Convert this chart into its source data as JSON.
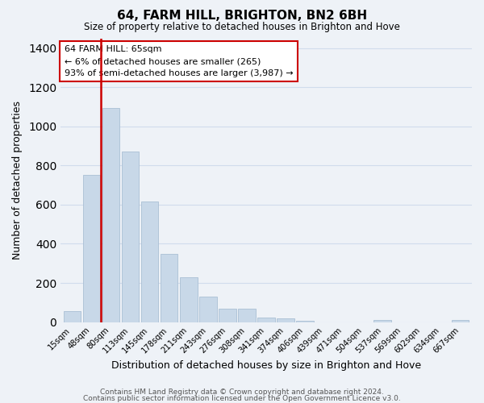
{
  "title": "64, FARM HILL, BRIGHTON, BN2 6BH",
  "subtitle": "Size of property relative to detached houses in Brighton and Hove",
  "xlabel": "Distribution of detached houses by size in Brighton and Hove",
  "ylabel": "Number of detached properties",
  "bar_labels": [
    "15sqm",
    "48sqm",
    "80sqm",
    "113sqm",
    "145sqm",
    "178sqm",
    "211sqm",
    "243sqm",
    "276sqm",
    "308sqm",
    "341sqm",
    "374sqm",
    "406sqm",
    "439sqm",
    "471sqm",
    "504sqm",
    "537sqm",
    "569sqm",
    "602sqm",
    "634sqm",
    "667sqm"
  ],
  "bar_values": [
    55,
    750,
    1095,
    870,
    615,
    350,
    228,
    130,
    68,
    70,
    25,
    18,
    5,
    0,
    0,
    0,
    10,
    0,
    0,
    0,
    10
  ],
  "bar_color": "#c8d8e8",
  "bar_edge_color": "#aabfd4",
  "red_line_x": 1.5,
  "highlight_color": "#cc0000",
  "ylim": [
    0,
    1450
  ],
  "yticks": [
    0,
    200,
    400,
    600,
    800,
    1000,
    1200,
    1400
  ],
  "annotation_title": "64 FARM HILL: 65sqm",
  "annotation_line1": "← 6% of detached houses are smaller (265)",
  "annotation_line2": "93% of semi-detached houses are larger (3,987) →",
  "footnote1": "Contains HM Land Registry data © Crown copyright and database right 2024.",
  "footnote2": "Contains public sector information licensed under the Open Government Licence v3.0.",
  "background_color": "#eef2f7",
  "grid_color": "#d0dcec"
}
